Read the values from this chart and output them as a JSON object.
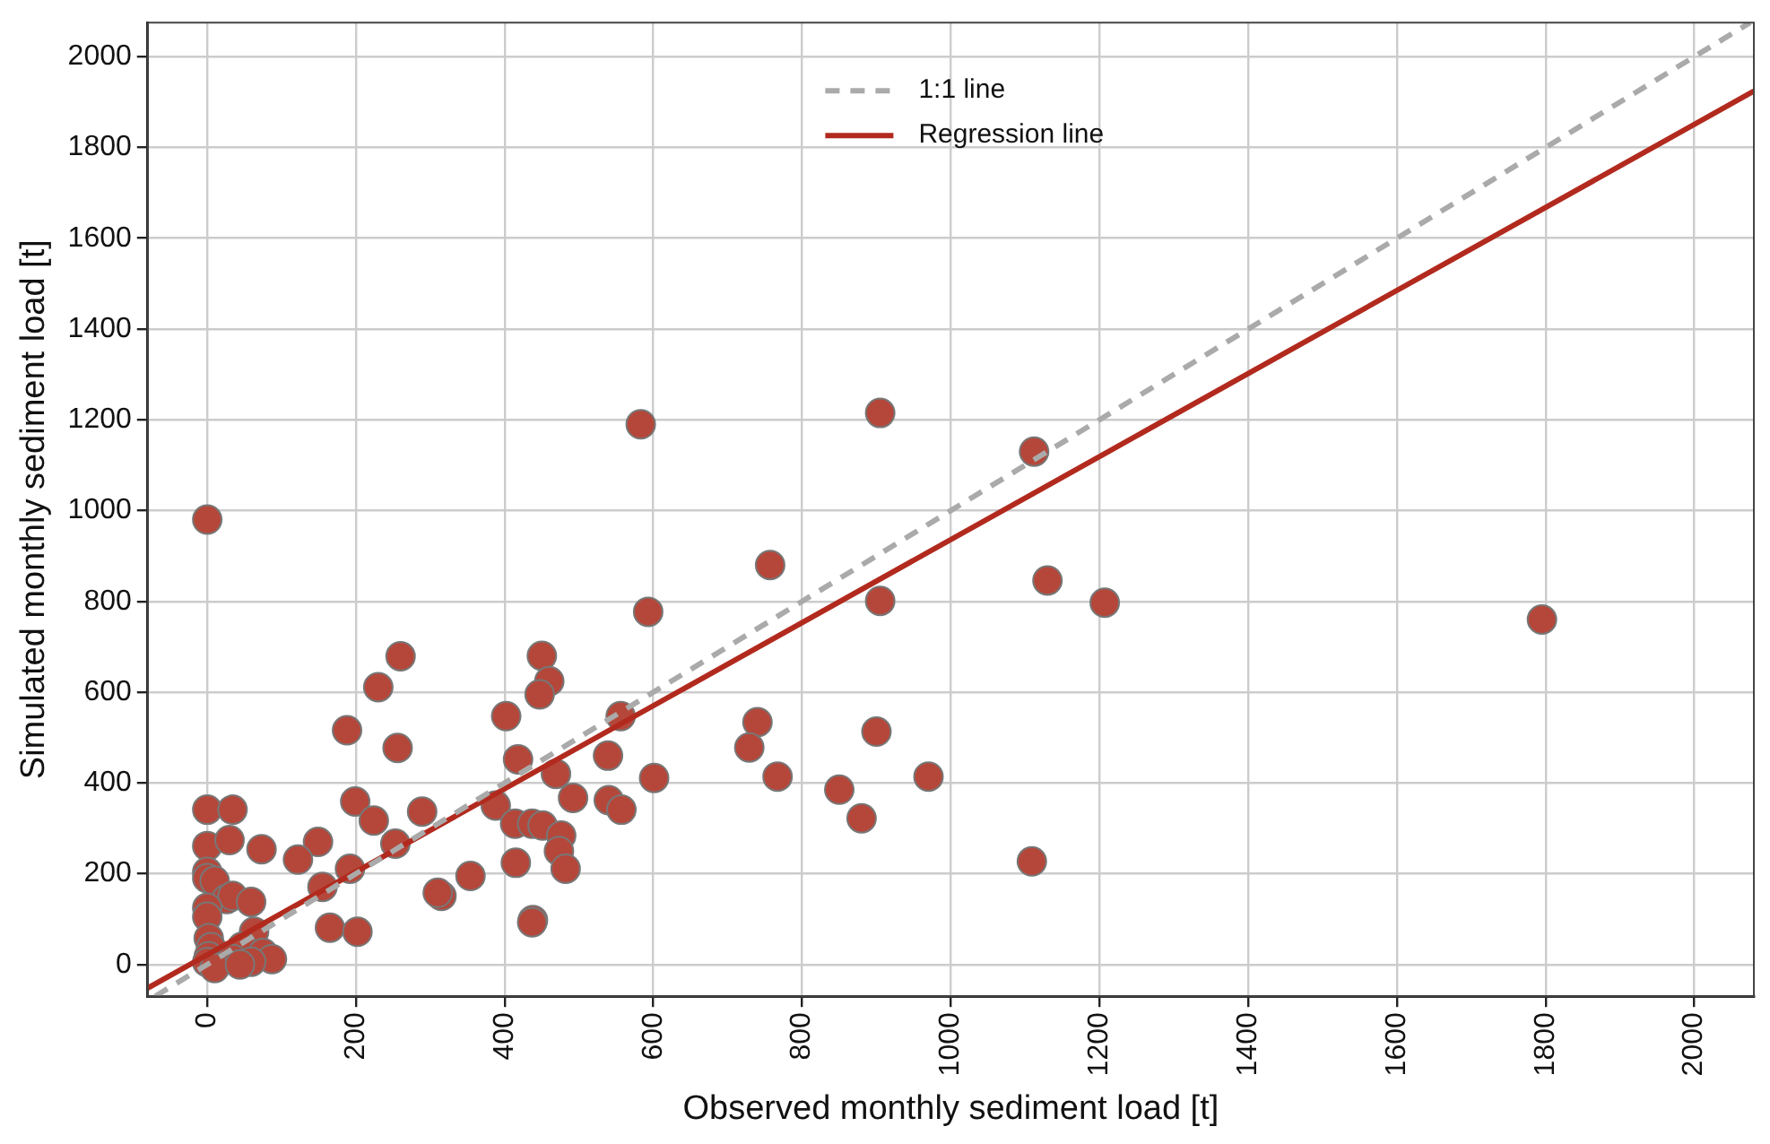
{
  "chart_data": {
    "type": "scatter",
    "xlabel": "Observed monthly sediment load [t]",
    "ylabel": "Simulated monthly sediment load [t]",
    "xlim": [
      -80,
      2080
    ],
    "ylim": [
      -70,
      2075
    ],
    "xticks": [
      0,
      200,
      400,
      600,
      800,
      1000,
      1200,
      1400,
      1600,
      1800,
      2000
    ],
    "yticks": [
      0,
      200,
      400,
      600,
      800,
      1000,
      1200,
      1400,
      1600,
      1800,
      2000
    ],
    "grid": true,
    "legend": "top",
    "marker": "circle",
    "series": [
      {
        "color": "#b5473a",
        "x": [
          0,
          583,
          905,
          1112,
          1795,
          757,
          593,
          905,
          1130,
          1207,
          740,
          729,
          767,
          601,
          850,
          880,
          900,
          970,
          1109,
          260,
          230,
          450,
          460,
          447,
          188,
          256,
          402,
          556,
          418,
          539,
          469,
          492,
          540,
          557,
          388,
          199,
          224,
          289,
          253,
          414,
          437,
          451,
          476,
          473,
          482,
          415,
          354,
          315,
          310,
          155,
          149,
          122,
          73,
          192,
          165,
          202,
          438,
          437,
          0,
          34,
          0,
          30,
          0,
          0,
          10,
          26,
          34,
          59,
          0,
          0,
          2,
          5,
          2,
          63,
          47,
          75,
          87,
          34,
          59,
          0,
          10,
          44
        ],
        "values": [
          980,
          1190,
          1215,
          1130,
          760,
          880,
          777,
          801,
          846,
          797,
          534,
          478,
          414,
          411,
          385,
          322,
          513,
          414,
          227,
          679,
          611,
          680,
          624,
          595,
          516,
          477,
          547,
          547,
          452,
          460,
          420,
          367,
          362,
          341,
          350,
          359,
          317,
          337,
          266,
          310,
          310,
          306,
          284,
          250,
          211,
          224,
          195,
          151,
          158,
          171,
          270,
          231,
          254,
          211,
          81,
          72,
          98,
          93,
          341,
          341,
          261,
          274,
          204,
          190,
          184,
          144,
          151,
          138,
          125,
          105,
          58,
          38,
          18,
          72,
          39,
          25,
          12,
          12,
          6,
          5,
          -8,
          0
        ]
      },
      {
        "type": "line",
        "name": "1:1 line",
        "color": "#aaaaaa",
        "line_style": "dashed",
        "marker": "none",
        "x": [
          -70,
          2075
        ],
        "values": [
          -70,
          2075
        ]
      },
      {
        "type": "line",
        "name": "Regression line",
        "color": "#b22a1e",
        "line_style": "solid",
        "marker": "none",
        "x": [
          -80,
          2080
        ],
        "values": [
          -52,
          1924
        ]
      }
    ]
  }
}
